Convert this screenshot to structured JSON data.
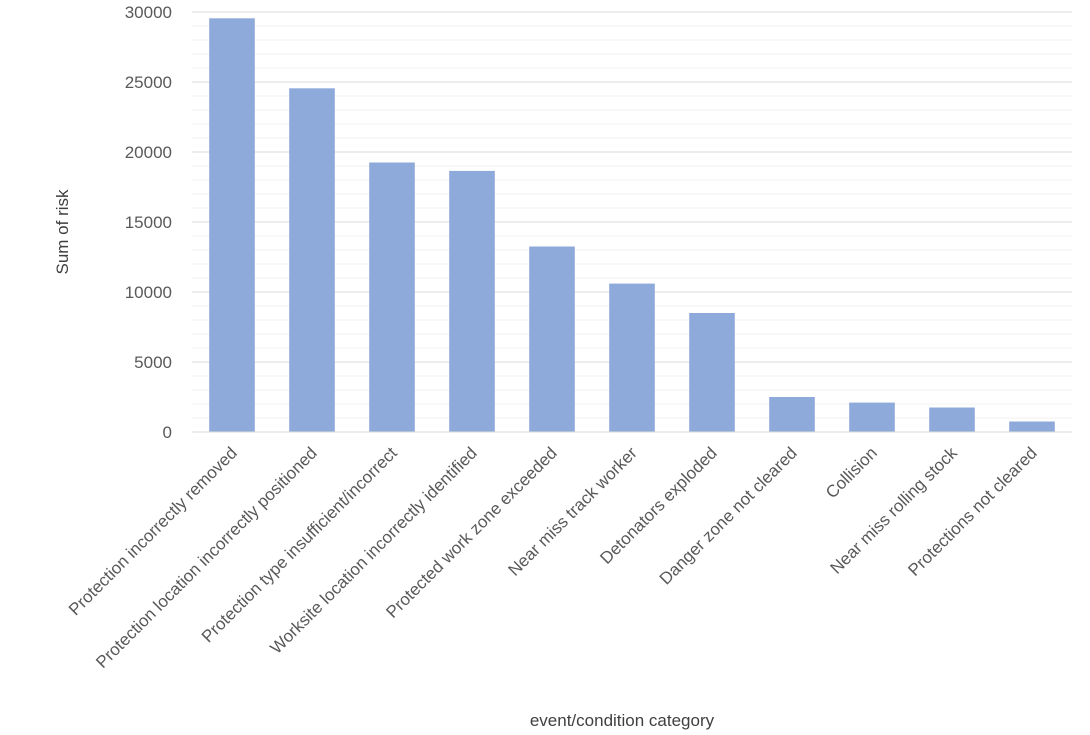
{
  "chart_data": {
    "type": "bar",
    "title": "",
    "xlabel": "event/condition category",
    "ylabel": "Sum of risk",
    "ylim": [
      0,
      30000
    ],
    "yticks": [
      0,
      5000,
      10000,
      15000,
      20000,
      25000,
      30000
    ],
    "grid": true,
    "legend": "none",
    "bar_color": "#8eaadb",
    "categories": [
      "Protection incorrectly removed",
      "Protection location incorrectly positioned",
      "Protection type insufficient/incorrect",
      "Worksite location incorrectly identified",
      "Protected work zone exceeded",
      "Near miss track worker",
      "Detonators exploded",
      "Danger zone not cleared",
      "Collision",
      "Near miss rolling stock",
      "Protections not cleared"
    ],
    "values": [
      29550,
      24550,
      19250,
      18650,
      13250,
      10600,
      8500,
      2500,
      2100,
      1750,
      750
    ]
  }
}
